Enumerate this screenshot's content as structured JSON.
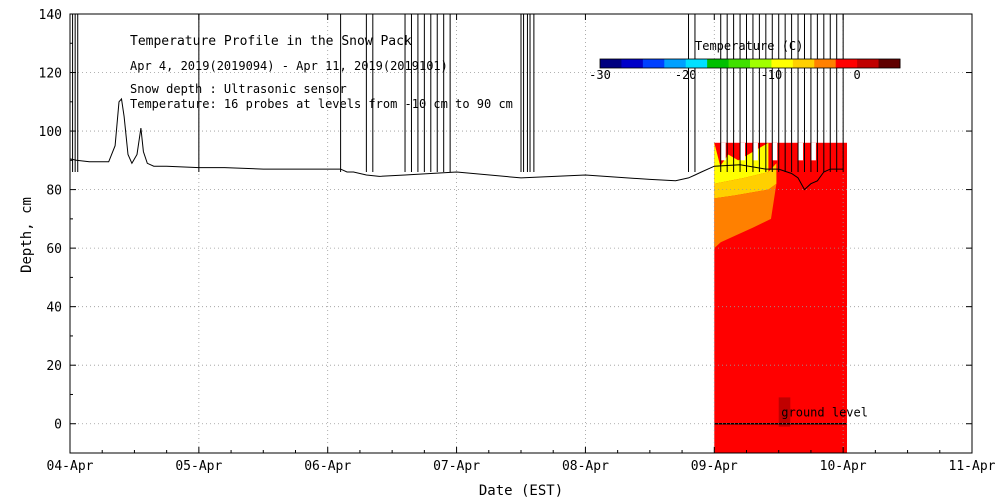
{
  "chart_data": {
    "type": "heatmap",
    "title": "Temperature Profile in the Snow Pack",
    "subtitle": "Apr  4, 2019(2019094) - Apr 11, 2019(2019101)",
    "info_lines": [
      "Snow depth : Ultrasonic sensor",
      "Temperature: 16 probes at levels from -10 cm to 90 cm"
    ],
    "xlabel": "Date (EST)",
    "ylabel": "Depth, cm",
    "x_range_days": [
      0,
      7
    ],
    "y_range": [
      -10,
      140
    ],
    "x_ticks": [
      "04-Apr",
      "05-Apr",
      "06-Apr",
      "07-Apr",
      "08-Apr",
      "09-Apr",
      "10-Apr",
      "11-Apr"
    ],
    "y_ticks": [
      0,
      20,
      40,
      60,
      80,
      100,
      120,
      140
    ],
    "grid": true,
    "legend": {
      "title": "Temperature (C)",
      "placement": "top-right",
      "min": -30,
      "max": 5,
      "tick_labels": [
        -30,
        -20,
        -10,
        0
      ],
      "colors": [
        "#000080",
        "#0000c8",
        "#0040ff",
        "#00a0ff",
        "#00e0ff",
        "#00c000",
        "#40e000",
        "#a0ff00",
        "#ffff00",
        "#ffd000",
        "#ff8000",
        "#ff0000",
        "#c00000",
        "#600000"
      ]
    },
    "ground_level_label": "ground level",
    "ground_level_depth": 0,
    "temperature_period_days": [
      5.0,
      6.03
    ],
    "temperature_colors": {
      "near_zero_top": "#ffff00",
      "near_zero_mid": "#ffd000",
      "slightly_below_zero": "#ff8000",
      "melting": "#ff0000",
      "ground_probe": "#c00000"
    },
    "snow_depth_series": {
      "x": [
        0,
        0.05,
        0.15,
        0.3,
        0.35,
        0.38,
        0.4,
        0.42,
        0.45,
        0.48,
        0.52,
        0.55,
        0.57,
        0.6,
        0.65,
        0.75,
        1.0,
        1.2,
        1.5,
        1.8,
        2.0,
        2.1,
        2.15,
        2.2,
        2.3,
        2.4,
        2.6,
        3.0,
        3.5,
        4.0,
        4.5,
        4.7,
        4.8,
        4.85,
        4.9,
        5.0,
        5.2,
        5.4,
        5.5,
        5.6,
        5.65,
        5.7,
        5.75,
        5.8,
        5.85,
        5.9,
        6.0
      ],
      "y": [
        90.5,
        90,
        89.5,
        89.5,
        95,
        110,
        111,
        105,
        92,
        89,
        92,
        101,
        93,
        89,
        88,
        88,
        87.5,
        87.5,
        87,
        87,
        87,
        87,
        86,
        86,
        85,
        84.5,
        85,
        86,
        84,
        85,
        83.5,
        83,
        84,
        85,
        86,
        88,
        88.5,
        87,
        87,
        85.5,
        84,
        80,
        82,
        83,
        86,
        87,
        87
      ]
    },
    "sensor_spikes_days": [
      0.02,
      0.04,
      0.06,
      1.0,
      2.1,
      2.3,
      2.35,
      2.6,
      2.65,
      2.7,
      2.75,
      2.8,
      2.85,
      2.9,
      2.95,
      3.5,
      3.52,
      3.55,
      3.57,
      3.6,
      4.8,
      4.85,
      5.05,
      5.1,
      5.15,
      5.2,
      5.25,
      5.3,
      5.35,
      5.4,
      5.45,
      5.5,
      5.55,
      5.6,
      5.65,
      5.7,
      5.75,
      5.8,
      5.85,
      5.9,
      5.95,
      6.0
    ]
  }
}
